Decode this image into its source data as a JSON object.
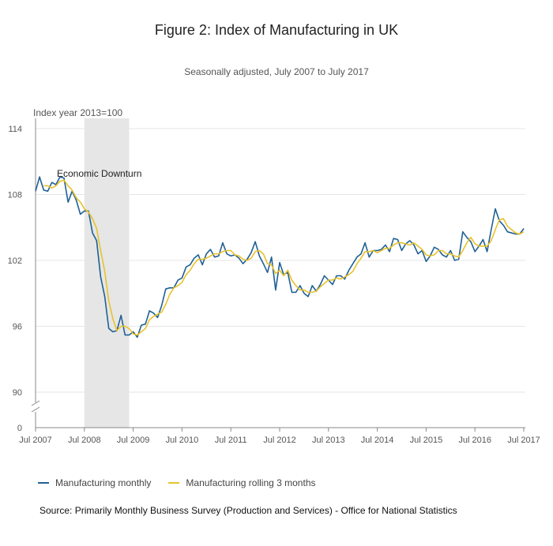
{
  "title": "Figure 2: Index of Manufacturing in UK",
  "subtitle": "Seasonally adjusted, July 2007 to July 2017",
  "source": "Source: Primarily Monthly Business Survey (Production and Services) - Office for National Statistics",
  "colors": {
    "monthly": "#206095",
    "rolling": "#E8C22C",
    "shade": "#e6e6e6",
    "grid": "#e6e6e6"
  },
  "chart_data": {
    "type": "line",
    "ylabel": "Index year 2013=100",
    "ylim": [
      88,
      115
    ],
    "yticks": [
      90,
      96,
      102,
      108,
      114
    ],
    "zero_tick": "0",
    "axis_break": true,
    "grid": true,
    "legend_position": "bottom-left",
    "x_start": "Jul 2007",
    "x_end": "Jul 2017",
    "x_ticks": [
      "Jul 2007",
      "Jul 2008",
      "Jul 2009",
      "Jul 2010",
      "Jul 2011",
      "Jul 2012",
      "Jul 2013",
      "Jul 2014",
      "Jul 2015",
      "Jul 2016",
      "Jul 2017"
    ],
    "annotation": {
      "text": "Economic Downturn",
      "start": "Jul 2008",
      "end": "Jun 2009"
    },
    "series": [
      {
        "name": "Manufacturing monthly",
        "values": [
          108.3,
          109.6,
          108.4,
          108.3,
          109.1,
          108.9,
          109.6,
          109.5,
          107.3,
          108.3,
          107.5,
          106.2,
          106.5,
          106.5,
          104.5,
          103.8,
          100.5,
          98.7,
          95.8,
          95.5,
          95.6,
          97.0,
          95.2,
          95.2,
          95.5,
          95.0,
          96.1,
          96.2,
          97.4,
          97.2,
          96.8,
          97.9,
          99.4,
          99.5,
          99.5,
          100.2,
          100.4,
          101.4,
          101.6,
          102.2,
          102.5,
          101.6,
          102.6,
          103.0,
          102.3,
          102.4,
          103.6,
          102.6,
          102.4,
          102.5,
          102.2,
          101.7,
          102.1,
          102.7,
          103.7,
          102.4,
          101.7,
          100.9,
          102.3,
          99.3,
          101.8,
          100.7,
          100.9,
          99.1,
          99.1,
          99.7,
          99.0,
          98.7,
          99.7,
          99.2,
          99.8,
          100.6,
          100.2,
          99.8,
          100.6,
          100.6,
          100.3,
          101.1,
          101.7,
          102.3,
          102.6,
          103.6,
          102.3,
          102.9,
          102.9,
          103.0,
          103.4,
          102.8,
          104.0,
          103.9,
          102.9,
          103.5,
          103.8,
          103.4,
          102.6,
          102.9,
          101.9,
          102.4,
          103.2,
          103.0,
          102.5,
          102.3,
          102.9,
          102.0,
          102.1,
          104.6,
          104.1,
          103.7,
          102.8,
          103.3,
          103.9,
          102.8,
          104.8,
          106.7,
          105.6,
          105.2,
          104.6,
          104.5,
          104.4,
          104.4,
          104.9
        ]
      },
      {
        "name": "Manufacturing rolling 3 months",
        "values": [
          null,
          null,
          108.8,
          108.8,
          108.6,
          108.8,
          109.2,
          109.3,
          108.8,
          108.4,
          107.7,
          107.3,
          106.7,
          106.4,
          105.8,
          104.9,
          102.9,
          101.0,
          98.3,
          96.7,
          95.6,
          96.0,
          96.0,
          95.8,
          95.3,
          95.2,
          95.5,
          95.8,
          96.6,
          96.9,
          97.1,
          97.3,
          98.0,
          98.9,
          99.5,
          99.7,
          100.0,
          100.7,
          101.1,
          101.7,
          102.1,
          102.1,
          102.2,
          102.4,
          102.6,
          102.6,
          102.8,
          102.9,
          102.9,
          102.5,
          102.4,
          102.1,
          102.0,
          102.2,
          102.8,
          102.9,
          102.6,
          101.7,
          101.6,
          100.8,
          101.1,
          100.6,
          101.1,
          100.2,
          99.7,
          99.3,
          99.3,
          99.1,
          99.1,
          99.2,
          99.6,
          99.9,
          100.2,
          100.2,
          100.4,
          100.3,
          100.5,
          100.7,
          101.0,
          101.7,
          102.2,
          102.8,
          102.8,
          102.9,
          102.7,
          102.9,
          103.1,
          103.1,
          103.4,
          103.6,
          103.6,
          103.5,
          103.4,
          103.6,
          103.3,
          103.0,
          102.5,
          102.4,
          102.5,
          102.9,
          102.9,
          102.6,
          102.6,
          102.4,
          102.3,
          102.9,
          103.6,
          104.1,
          103.5,
          103.3,
          103.3,
          103.3,
          103.8,
          104.8,
          105.7,
          105.8,
          105.1,
          104.8,
          104.5,
          104.4,
          104.6
        ]
      }
    ]
  }
}
